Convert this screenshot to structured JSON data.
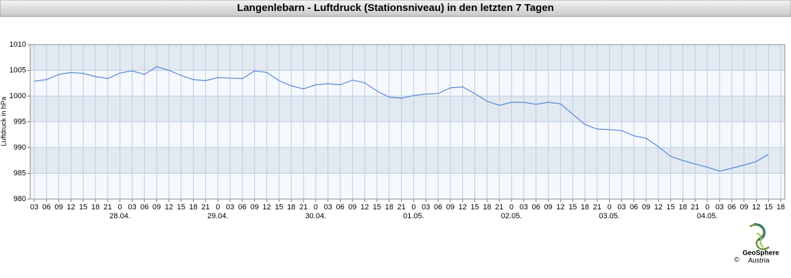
{
  "chart_data": {
    "type": "line",
    "title": "Langenlebarn - Luftdruck (Stationsniveau) in den letzten 7 Tagen",
    "y_label": "Luftdruck in hPa",
    "ylim": [
      980,
      1010
    ],
    "yticks": [
      980,
      985,
      990,
      995,
      1000,
      1005,
      1010
    ],
    "xlim": [
      "27.04. 02",
      "04.05. 19"
    ],
    "grid": true,
    "bands": true,
    "xticks": [
      {
        "value": "27.04. 03",
        "label": "03"
      },
      {
        "value": "27.04. 06",
        "label": "06"
      },
      {
        "value": "27.04. 09",
        "label": "09"
      },
      {
        "value": "27.04. 12",
        "label": "12"
      },
      {
        "value": "27.04. 15",
        "label": "15"
      },
      {
        "value": "27.04. 18",
        "label": "18"
      },
      {
        "value": "27.04. 21",
        "label": "21"
      },
      {
        "value": "28.04. 00",
        "label": "0"
      },
      {
        "value": "28.04. 03",
        "label": "03"
      },
      {
        "value": "28.04. 06",
        "label": "06"
      },
      {
        "value": "28.04. 09",
        "label": "09"
      },
      {
        "value": "28.04. 12",
        "label": "12"
      },
      {
        "value": "28.04. 15",
        "label": "15"
      },
      {
        "value": "28.04. 18",
        "label": "18"
      },
      {
        "value": "28.04. 21",
        "label": "21"
      },
      {
        "value": "29.04. 00",
        "label": "0"
      },
      {
        "value": "29.04. 03",
        "label": "03"
      },
      {
        "value": "29.04. 06",
        "label": "06"
      },
      {
        "value": "29.04. 09",
        "label": "09"
      },
      {
        "value": "29.04. 12",
        "label": "12"
      },
      {
        "value": "29.04. 15",
        "label": "15"
      },
      {
        "value": "29.04. 18",
        "label": "18"
      },
      {
        "value": "29.04. 21",
        "label": "21"
      },
      {
        "value": "30.04. 00",
        "label": "0"
      },
      {
        "value": "30.04. 03",
        "label": "03"
      },
      {
        "value": "30.04. 06",
        "label": "06"
      },
      {
        "value": "30.04. 09",
        "label": "09"
      },
      {
        "value": "30.04. 12",
        "label": "12"
      },
      {
        "value": "30.04. 15",
        "label": "15"
      },
      {
        "value": "30.04. 18",
        "label": "18"
      },
      {
        "value": "30.04. 21",
        "label": "21"
      },
      {
        "value": "01.05. 00",
        "label": "0"
      },
      {
        "value": "01.05. 03",
        "label": "03"
      },
      {
        "value": "01.05. 06",
        "label": "06"
      },
      {
        "value": "01.05. 09",
        "label": "09"
      },
      {
        "value": "01.05. 12",
        "label": "12"
      },
      {
        "value": "01.05. 15",
        "label": "15"
      },
      {
        "value": "01.05. 18",
        "label": "18"
      },
      {
        "value": "01.05. 21",
        "label": "21"
      },
      {
        "value": "02.05. 00",
        "label": "0"
      },
      {
        "value": "02.05. 03",
        "label": "03"
      },
      {
        "value": "02.05. 06",
        "label": "06"
      },
      {
        "value": "02.05. 09",
        "label": "09"
      },
      {
        "value": "02.05. 12",
        "label": "12"
      },
      {
        "value": "02.05. 15",
        "label": "15"
      },
      {
        "value": "02.05. 18",
        "label": "18"
      },
      {
        "value": "02.05. 21",
        "label": "21"
      },
      {
        "value": "03.05. 00",
        "label": "0"
      },
      {
        "value": "03.05. 03",
        "label": "03"
      },
      {
        "value": "03.05. 06",
        "label": "06"
      },
      {
        "value": "03.05. 09",
        "label": "09"
      },
      {
        "value": "03.05. 12",
        "label": "12"
      },
      {
        "value": "03.05. 15",
        "label": "15"
      },
      {
        "value": "03.05. 18",
        "label": "18"
      },
      {
        "value": "03.05. 21",
        "label": "21"
      },
      {
        "value": "04.05. 00",
        "label": "0"
      },
      {
        "value": "04.05. 03",
        "label": "03"
      },
      {
        "value": "04.05. 06",
        "label": "06"
      },
      {
        "value": "04.05. 09",
        "label": "09"
      },
      {
        "value": "04.05. 12",
        "label": "12"
      },
      {
        "value": "04.05. 15",
        "label": "15"
      },
      {
        "value": "04.05. 18",
        "label": "18"
      }
    ],
    "date_labels": [
      {
        "value": "28.04. 00",
        "label": "28.04."
      },
      {
        "value": "29.04. 00",
        "label": "29.04."
      },
      {
        "value": "30.04. 00",
        "label": "30.04."
      },
      {
        "value": "01.05. 00",
        "label": "01.05."
      },
      {
        "value": "02.05. 00",
        "label": "02.05."
      },
      {
        "value": "03.05. 00",
        "label": "03.05."
      },
      {
        "value": "04.05. 00",
        "label": "04.05."
      }
    ],
    "x": [
      "27.04. 03",
      "27.04. 06",
      "27.04. 09",
      "27.04. 12",
      "27.04. 15",
      "27.04. 18",
      "27.04. 21",
      "28.04. 00",
      "28.04. 03",
      "28.04. 06",
      "28.04. 09",
      "28.04. 12",
      "28.04. 15",
      "28.04. 18",
      "28.04. 21",
      "29.04. 00",
      "29.04. 03",
      "29.04. 06",
      "29.04. 09",
      "29.04. 12",
      "29.04. 15",
      "29.04. 18",
      "29.04. 21",
      "30.04. 00",
      "30.04. 03",
      "30.04. 06",
      "30.04. 09",
      "30.04. 12",
      "30.04. 15",
      "30.04. 18",
      "30.04. 21",
      "01.05. 00",
      "01.05. 03",
      "01.05. 06",
      "01.05. 09",
      "01.05. 12",
      "01.05. 15",
      "01.05. 18",
      "01.05. 21",
      "02.05. 00",
      "02.05. 03",
      "02.05. 06",
      "02.05. 09",
      "02.05. 12",
      "02.05. 15",
      "02.05. 18",
      "02.05. 21",
      "03.05. 00",
      "03.05. 03",
      "03.05. 06",
      "03.05. 09",
      "03.05. 12",
      "03.05. 15",
      "03.05. 18",
      "03.05. 21",
      "04.05. 00",
      "04.05. 03",
      "04.05. 06",
      "04.05. 09",
      "04.05. 12",
      "04.05. 15"
    ],
    "series": [
      {
        "color": "#4f86d6",
        "values": [
          1002.9,
          1003.2,
          1004.2,
          1004.6,
          1004.4,
          1003.8,
          1003.4,
          1004.5,
          1004.9,
          1004.2,
          1005.7,
          1005.0,
          1004.0,
          1003.2,
          1003.0,
          1003.6,
          1003.5,
          1003.4,
          1004.9,
          1004.6,
          1003.0,
          1002.0,
          1001.4,
          1002.2,
          1002.4,
          1002.2,
          1003.1,
          1002.6,
          1001.0,
          999.8,
          999.6,
          1000.1,
          1000.4,
          1000.5,
          1001.6,
          1001.8,
          1000.5,
          999.0,
          998.2,
          998.8,
          998.8,
          998.4,
          998.8,
          998.5,
          996.5,
          994.5,
          993.6,
          993.5,
          993.3,
          992.3,
          991.8,
          990.2,
          988.3,
          987.5,
          986.8,
          986.2,
          985.4,
          986.0,
          986.6,
          987.3,
          988.7
        ]
      }
    ]
  },
  "logo": {
    "name": "GeoSphere",
    "country": "Austria",
    "copyright": "©"
  }
}
